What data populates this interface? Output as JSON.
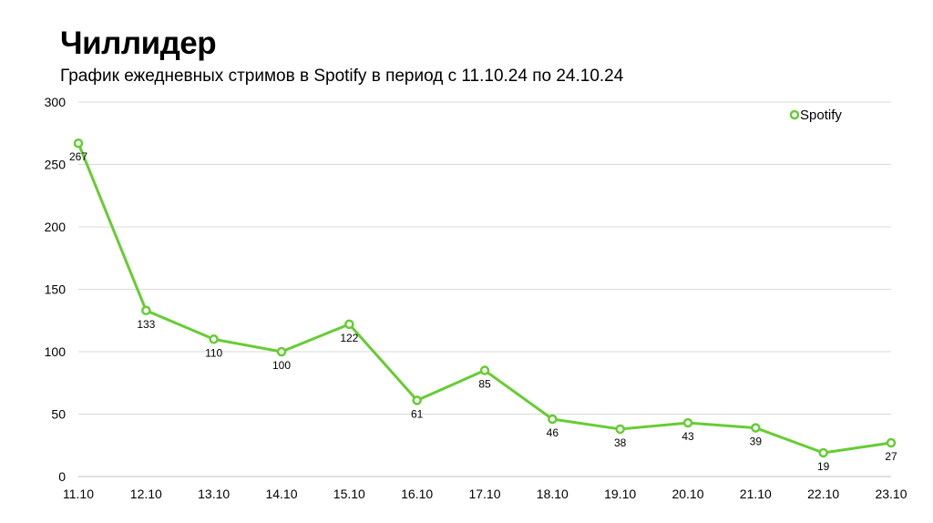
{
  "slide": {
    "title": "Чиллидер",
    "subtitle": "График ежедневных стримов в Spotify в период с 11.10.24 по 24.10.24"
  },
  "chart_data": {
    "type": "line",
    "categories": [
      "11.10",
      "12.10",
      "13.10",
      "14.10",
      "15.10",
      "16.10",
      "17.10",
      "18.10",
      "19.10",
      "20.10",
      "21.10",
      "22.10",
      "23.10"
    ],
    "series": [
      {
        "name": "Spotify",
        "values": [
          267,
          133,
          110,
          100,
          122,
          61,
          85,
          46,
          38,
          43,
          39,
          19,
          27
        ],
        "color": "#66cc33"
      }
    ],
    "ylim": [
      0,
      300
    ],
    "yticks": [
      0,
      50,
      100,
      150,
      200,
      250,
      300
    ],
    "grid": true,
    "legend": "top-right",
    "data_labels": true
  }
}
